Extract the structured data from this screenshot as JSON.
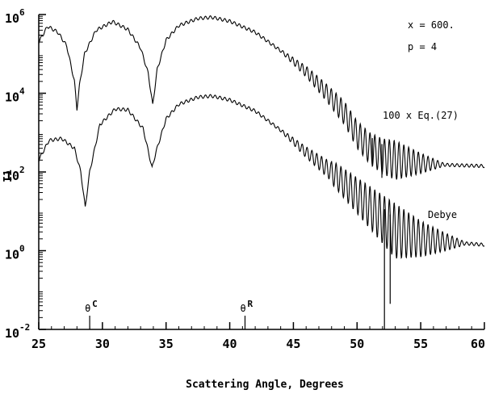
{
  "chart_data": {
    "type": "line",
    "xlabel": "Scattering Angle, Degrees",
    "ylabel": "I1",
    "xlim": [
      25,
      60
    ],
    "ylim_log10": [
      -2,
      6
    ],
    "yscale": "log",
    "xticks": [
      25,
      30,
      35,
      40,
      45,
      50,
      55,
      60
    ],
    "xtick_labels": [
      "25",
      "30",
      "35",
      "40",
      "45",
      "50",
      "55",
      "60"
    ],
    "yticks": [
      {
        "base": "10",
        "exp": "-2",
        "value": 0.01
      },
      {
        "base": "10",
        "exp": "0",
        "value": 1
      },
      {
        "base": "10",
        "exp": "2",
        "value": 100
      },
      {
        "base": "10",
        "exp": "4",
        "value": 10000
      },
      {
        "base": "10",
        "exp": "6",
        "value": 1000000
      }
    ],
    "annotations": {
      "size_param": "x = 600.",
      "p_value": "p = 4",
      "upper_label": "100 x Eq.(27)",
      "lower_label": "Debye",
      "theta_c": {
        "text": "θ",
        "sup": "C",
        "x": 29.0
      },
      "theta_r": {
        "text": "θ",
        "sup": "R",
        "x": 41.2
      }
    },
    "series": [
      {
        "name": "100 x Eq.(27)",
        "points": [
          [
            25.0,
            5.3
          ],
          [
            25.7,
            5.7
          ],
          [
            26.5,
            5.55
          ],
          [
            27.2,
            5.2
          ],
          [
            27.8,
            4.3
          ],
          [
            28.0,
            3.6
          ],
          [
            28.2,
            4.2
          ],
          [
            28.6,
            5.0
          ],
          [
            29.5,
            5.6
          ],
          [
            30.8,
            5.82
          ],
          [
            32.0,
            5.62
          ],
          [
            33.0,
            5.15
          ],
          [
            33.6,
            4.5
          ],
          [
            33.95,
            3.7
          ],
          [
            34.3,
            4.6
          ],
          [
            35.0,
            5.35
          ],
          [
            36.0,
            5.72
          ],
          [
            37.5,
            5.9
          ],
          [
            38.6,
            5.93
          ],
          [
            40.0,
            5.83
          ],
          [
            42.0,
            5.55
          ],
          [
            44.0,
            5.08
          ],
          [
            46.0,
            4.55
          ],
          [
            47.5,
            4.05
          ],
          [
            49.0,
            3.5
          ],
          [
            50.0,
            2.95
          ],
          [
            51.0,
            2.6
          ],
          [
            52.0,
            2.4
          ],
          [
            53.0,
            2.3
          ],
          [
            55.0,
            2.22
          ],
          [
            57.0,
            2.18
          ],
          [
            60.0,
            2.15
          ]
        ]
      },
      {
        "name": "Debye",
        "points": [
          [
            25.0,
            2.3
          ],
          [
            25.8,
            2.8
          ],
          [
            26.8,
            2.85
          ],
          [
            27.8,
            2.6
          ],
          [
            28.3,
            2.0
          ],
          [
            28.65,
            1.1
          ],
          [
            29.0,
            2.0
          ],
          [
            29.8,
            3.2
          ],
          [
            31.0,
            3.6
          ],
          [
            32.0,
            3.58
          ],
          [
            33.2,
            3.1
          ],
          [
            33.9,
            2.1
          ],
          [
            34.2,
            2.5
          ],
          [
            35.0,
            3.35
          ],
          [
            36.0,
            3.72
          ],
          [
            37.5,
            3.9
          ],
          [
            38.6,
            3.93
          ],
          [
            40.0,
            3.83
          ],
          [
            42.0,
            3.55
          ],
          [
            44.0,
            3.06
          ],
          [
            46.0,
            2.5
          ],
          [
            48.0,
            2.0
          ],
          [
            50.0,
            1.4
          ],
          [
            51.0,
            1.1
          ],
          [
            52.0,
            0.8
          ],
          [
            53.0,
            0.5
          ],
          [
            55.0,
            0.3
          ],
          [
            57.0,
            0.22
          ],
          [
            60.0,
            0.15
          ]
        ]
      }
    ],
    "deep_minima": [
      {
        "series": "100 x Eq.(27)",
        "x": 51.2,
        "log10_y": 2.15
      },
      {
        "series": "100 x Eq.(27)",
        "x": 51.95,
        "log10_y": 1.85
      },
      {
        "series": "Debye",
        "x": 52.15,
        "log10_y": -2.0
      },
      {
        "series": "Debye",
        "x": 52.6,
        "log10_y": -1.35
      }
    ]
  }
}
